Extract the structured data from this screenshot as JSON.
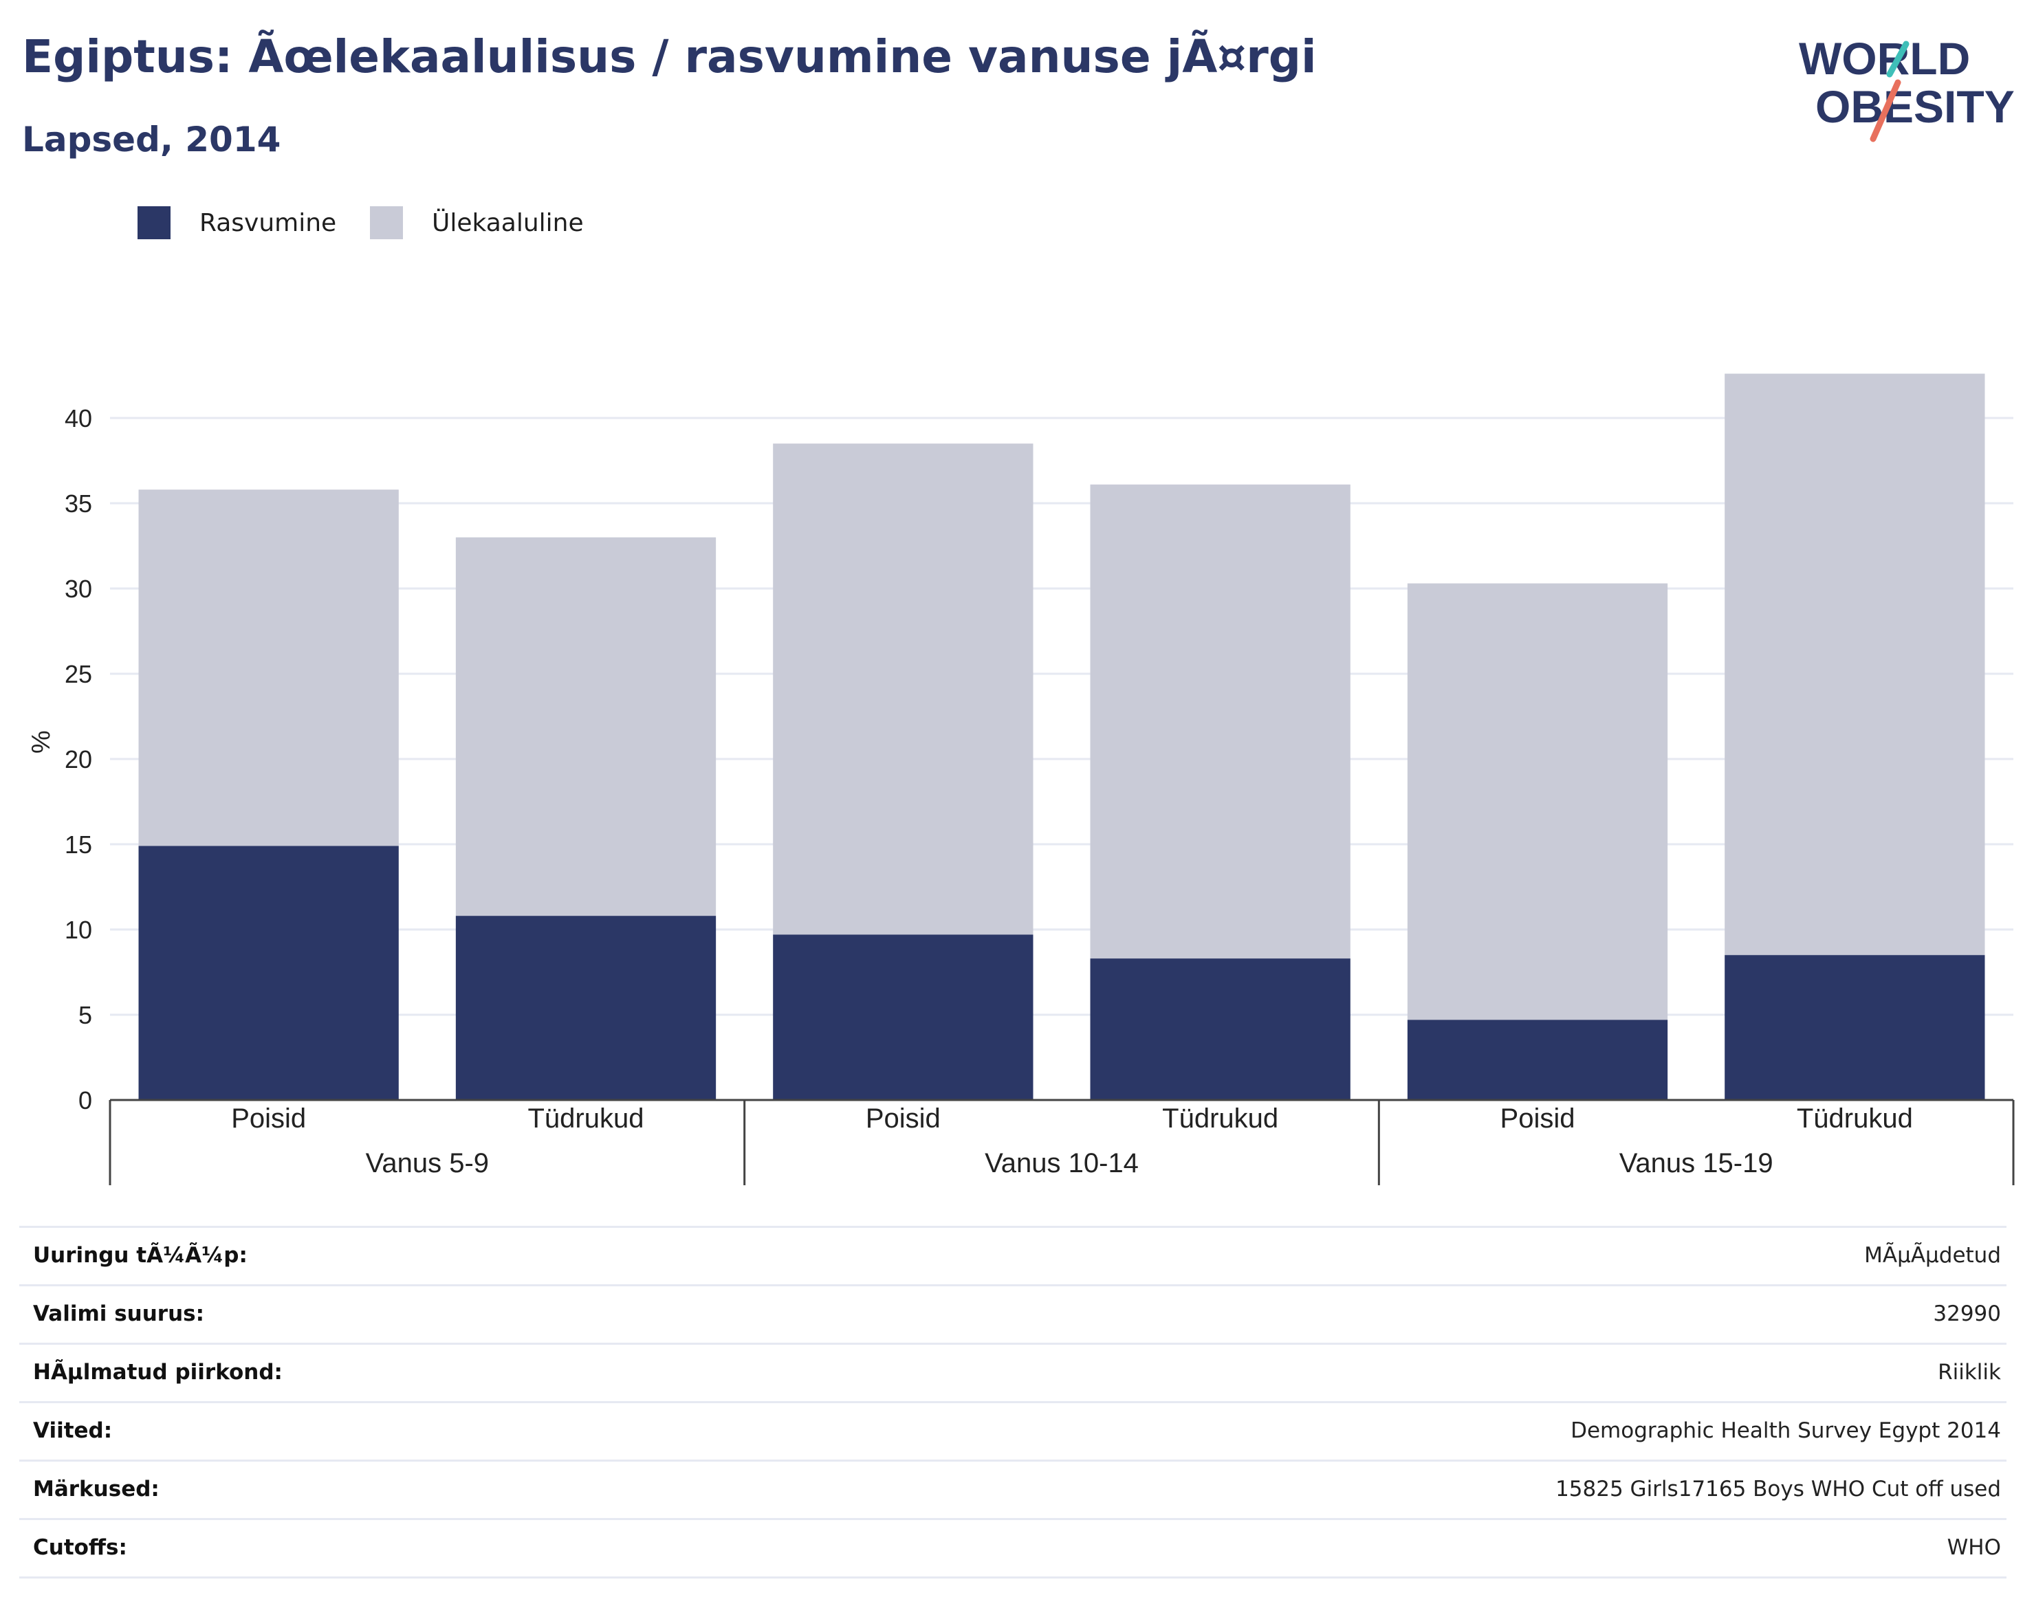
{
  "header": {
    "title": "Egiptus: Ãœlekaalulisus / rasvumine vanuse jÃ¤rgi",
    "subtitle": "Lapsed, 2014"
  },
  "logo": {
    "line1": "WORLD",
    "line2": "OBESITY"
  },
  "colors": {
    "obesity": "#2b3766",
    "overweight": "#c9cbd7",
    "title": "#2b3766",
    "logo_teal": "#3fbfb8",
    "logo_coral": "#e8705d",
    "grid": "#e6e9f2",
    "axis": "#444444"
  },
  "legend": [
    {
      "label": "Rasvumine",
      "color": "#2b3766"
    },
    {
      "label": "Ülekaaluline",
      "color": "#c9cbd7"
    }
  ],
  "chart_data": {
    "type": "bar",
    "stacked": true,
    "ylabel": "%",
    "ylim": [
      0,
      43
    ],
    "yticks": [
      0,
      5,
      10,
      15,
      20,
      25,
      30,
      35,
      40
    ],
    "grid": true,
    "legend_position": "top-left",
    "groups": [
      {
        "label": "Vanus 5-9",
        "categories": [
          "Poisid",
          "Tüdrukud"
        ]
      },
      {
        "label": "Vanus 10-14",
        "categories": [
          "Poisid",
          "Tüdrukud"
        ]
      },
      {
        "label": "Vanus 15-19",
        "categories": [
          "Poisid",
          "Tüdrukud"
        ]
      }
    ],
    "categories": [
      "Poisid",
      "Tüdrukud",
      "Poisid",
      "Tüdrukud",
      "Poisid",
      "Tüdrukud"
    ],
    "series": [
      {
        "name": "Rasvumine",
        "values": [
          14.9,
          10.8,
          9.7,
          8.3,
          4.7,
          8.5
        ]
      },
      {
        "name": "Ülekaaluline",
        "values": [
          20.9,
          22.2,
          28.8,
          27.8,
          25.6,
          34.1
        ]
      }
    ]
  },
  "info": [
    {
      "label": "Uuringu tÃ¼Ã¼p:",
      "value": "MÃµÃµdetud"
    },
    {
      "label": "Valimi suurus:",
      "value": "32990"
    },
    {
      "label": "HÃµlmatud piirkond:",
      "value": "Riiklik"
    },
    {
      "label": "Viited:",
      "value": "Demographic Health Survey Egypt 2014"
    },
    {
      "label": "Märkused:",
      "value": "15825 Girls17165 Boys WHO Cut off used"
    },
    {
      "label": "Cutoffs:",
      "value": "WHO"
    }
  ]
}
